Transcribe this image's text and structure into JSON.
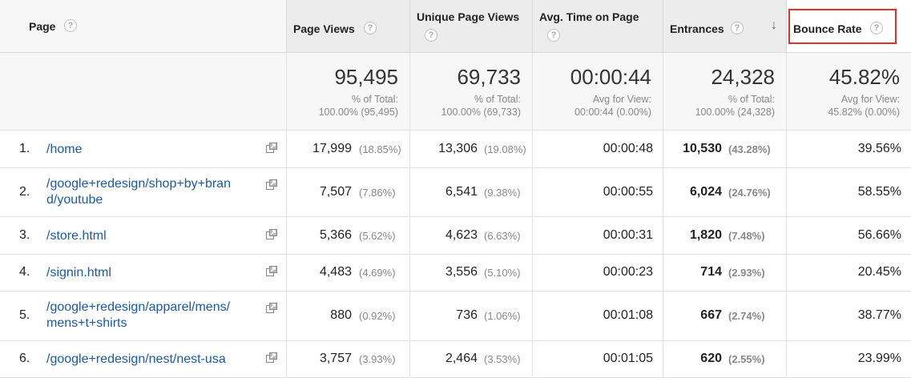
{
  "headers": {
    "page": "Page",
    "page_views": "Page Views",
    "unique_page_views": "Unique Page Views",
    "avg_time": "Avg. Time on Page",
    "entrances": "Entrances",
    "bounce_rate": "Bounce Rate",
    "help": "?",
    "sort": "↓"
  },
  "totals": {
    "page_views": {
      "value": "95,495",
      "l1": "% of Total:",
      "l2": "100.00% (95,495)"
    },
    "unique_page_views": {
      "value": "69,733",
      "l1": "% of Total:",
      "l2": "100.00% (69,733)"
    },
    "avg_time": {
      "value": "00:00:44",
      "l1": "Avg for View:",
      "l2": "00:00:44 (0.00%)"
    },
    "entrances": {
      "value": "24,328",
      "l1": "% of Total:",
      "l2": "100.00% (24,328)"
    },
    "bounce_rate": {
      "value": "45.82%",
      "l1": "Avg for View:",
      "l2": "45.82% (0.00%)"
    }
  },
  "rows": [
    {
      "num": "1.",
      "page1": "/home",
      "page2": "",
      "pv": "17,999",
      "pv_pct": "(18.85%)",
      "upv": "13,306",
      "upv_pct": "(19.08%)",
      "time": "00:00:48",
      "ent": "10,530",
      "ent_pct": "(43.28%)",
      "br": "39.56%"
    },
    {
      "num": "2.",
      "page1": "/google+redesign/shop+by+bran",
      "page2": "d/youtube",
      "pv": "7,507",
      "pv_pct": "(7.86%)",
      "upv": "6,541",
      "upv_pct": "(9.38%)",
      "time": "00:00:55",
      "ent": "6,024",
      "ent_pct": "(24.76%)",
      "br": "58.55%"
    },
    {
      "num": "3.",
      "page1": "/store.html",
      "page2": "",
      "pv": "5,366",
      "pv_pct": "(5.62%)",
      "upv": "4,623",
      "upv_pct": "(6.63%)",
      "time": "00:00:31",
      "ent": "1,820",
      "ent_pct": "(7.48%)",
      "br": "56.66%"
    },
    {
      "num": "4.",
      "page1": "/signin.html",
      "page2": "",
      "pv": "4,483",
      "pv_pct": "(4.69%)",
      "upv": "3,556",
      "upv_pct": "(5.10%)",
      "time": "00:00:23",
      "ent": "714",
      "ent_pct": "(2.93%)",
      "br": "20.45%"
    },
    {
      "num": "5.",
      "page1": "/google+redesign/apparel/mens/",
      "page2": "mens+t+shirts",
      "pv": "880",
      "pv_pct": "(0.92%)",
      "upv": "736",
      "upv_pct": "(1.06%)",
      "time": "00:01:08",
      "ent": "667",
      "ent_pct": "(2.74%)",
      "br": "38.77%"
    },
    {
      "num": "6.",
      "page1": "/google+redesign/nest/nest-usa",
      "page2": "",
      "pv": "3,757",
      "pv_pct": "(3.93%)",
      "upv": "2,464",
      "upv_pct": "(3.53%)",
      "time": "00:01:05",
      "ent": "620",
      "ent_pct": "(2.55%)",
      "br": "23.99%"
    }
  ]
}
